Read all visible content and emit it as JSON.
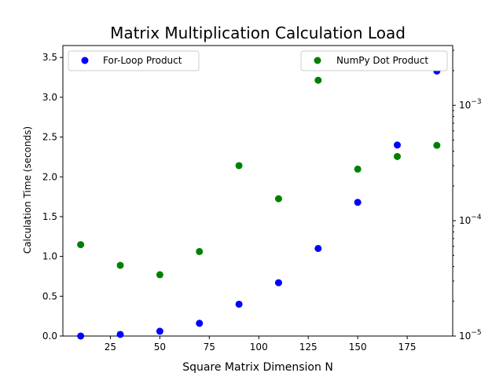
{
  "chart_data": {
    "type": "scatter",
    "title": "Matrix Multiplication Calculation Load",
    "xlabel": "Square Matrix Dimension N",
    "ylabel_left": "Calculation Time (seconds)",
    "x": [
      10,
      30,
      50,
      70,
      90,
      110,
      130,
      150,
      170,
      190
    ],
    "xlim": [
      1.0,
      198.0
    ],
    "xticks": [
      25,
      50,
      75,
      100,
      125,
      150,
      175
    ],
    "xtick_labels": [
      "25",
      "50",
      "75",
      "100",
      "125",
      "150",
      "175"
    ],
    "y_left": {
      "scale": "linear",
      "lim": [
        0.0,
        3.65
      ],
      "ticks": [
        0.0,
        0.5,
        1.0,
        1.5,
        2.0,
        2.5,
        3.0,
        3.5
      ],
      "tick_labels": [
        "0.0",
        "0.5",
        "1.0",
        "1.5",
        "2.0",
        "2.5",
        "3.0",
        "3.5"
      ]
    },
    "y_right": {
      "scale": "log",
      "lim": [
        1e-05,
        0.0033
      ],
      "major_ticks": [
        1e-05,
        0.0001,
        0.001
      ],
      "tick_labels": [
        "10^-5",
        "10^-4",
        "10^-3"
      ]
    },
    "series": [
      {
        "name": "For-Loop Product",
        "axis": "left",
        "color": "#0000ff",
        "values": [
          0.0,
          0.02,
          0.06,
          0.16,
          0.4,
          0.67,
          1.1,
          1.68,
          2.4,
          3.33
        ]
      },
      {
        "name": "NumPy Dot Product",
        "axis": "right",
        "color": "#008000",
        "values": [
          6.2e-05,
          4.1e-05,
          3.4e-05,
          5.4e-05,
          0.0003,
          0.000155,
          0.00165,
          0.00028,
          0.00036,
          0.00045
        ]
      }
    ],
    "legends": [
      {
        "series": "For-Loop Product",
        "placement": "upper-left"
      },
      {
        "series": "NumPy Dot Product",
        "placement": "upper-right"
      }
    ],
    "grid": false
  }
}
